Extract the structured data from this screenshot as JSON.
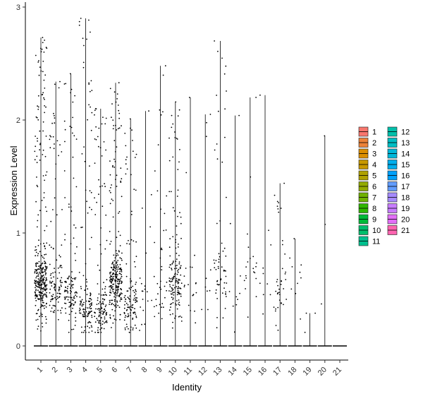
{
  "chart_data": {
    "type": "violin",
    "xlabel": "Identity",
    "ylabel": "Expression Level",
    "ylim": [
      0,
      3
    ],
    "yticks": [
      0,
      1,
      2,
      3
    ],
    "categories": [
      "1",
      "2",
      "3",
      "4",
      "5",
      "6",
      "7",
      "8",
      "9",
      "10",
      "11",
      "12",
      "13",
      "14",
      "15",
      "16",
      "17",
      "18",
      "19",
      "20",
      "21"
    ],
    "max_values": [
      2.73,
      2.34,
      2.41,
      2.9,
      2.1,
      2.33,
      2.01,
      2.08,
      2.48,
      2.16,
      2.2,
      2.05,
      2.7,
      2.04,
      2.2,
      2.22,
      1.44,
      0.95,
      0.29,
      1.86,
      0.0
    ],
    "nonzero_cells_approx": [
      330,
      110,
      120,
      130,
      130,
      260,
      120,
      20,
      40,
      150,
      20,
      10,
      60,
      10,
      20,
      10,
      40,
      10,
      3,
      3,
      0
    ],
    "dense_center_values": [
      0.55,
      0.5,
      0.45,
      0.3,
      0.3,
      0.55,
      0.35,
      0.4,
      0.5,
      0.55,
      0.5,
      0.5,
      0.6,
      0.5,
      0.6,
      0.5,
      0.5,
      0.6,
      0.2,
      0.4,
      0
    ],
    "legend": {
      "position": "right",
      "columns": 2,
      "entries": [
        {
          "label": "1",
          "color": "#F8766D"
        },
        {
          "label": "2",
          "color": "#EC8239"
        },
        {
          "label": "3",
          "color": "#DB8E00"
        },
        {
          "label": "4",
          "color": "#C79800"
        },
        {
          "label": "5",
          "color": "#AFA100"
        },
        {
          "label": "6",
          "color": "#93AA00"
        },
        {
          "label": "7",
          "color": "#6FB100"
        },
        {
          "label": "8",
          "color": "#2FB600"
        },
        {
          "label": "9",
          "color": "#00BA38"
        },
        {
          "label": "10",
          "color": "#00BE6C"
        },
        {
          "label": "11",
          "color": "#00C08E"
        },
        {
          "label": "12",
          "color": "#00C0AB"
        },
        {
          "label": "13",
          "color": "#00BEC4"
        },
        {
          "label": "14",
          "color": "#00B8DA"
        },
        {
          "label": "15",
          "color": "#00AEEC"
        },
        {
          "label": "16",
          "color": "#00A1FB"
        },
        {
          "label": "17",
          "color": "#619CFF"
        },
        {
          "label": "18",
          "color": "#A58AFF"
        },
        {
          "label": "19",
          "color": "#C77CFF"
        },
        {
          "label": "20",
          "color": "#E26EF7"
        },
        {
          "label": "21",
          "color": "#FF64B0"
        }
      ]
    }
  }
}
